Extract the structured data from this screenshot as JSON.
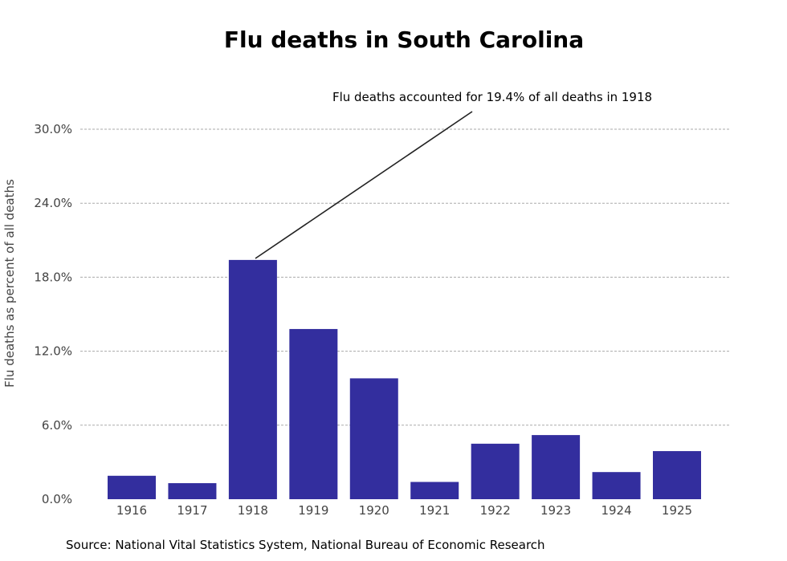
{
  "chart_data": {
    "type": "bar",
    "title": "Flu deaths in South Carolina",
    "xlabel": "",
    "ylabel": "Flu deaths as percent of all deaths",
    "categories": [
      "1916",
      "1917",
      "1918",
      "1919",
      "1920",
      "1921",
      "1922",
      "1923",
      "1924",
      "1925"
    ],
    "values": [
      1.9,
      1.3,
      19.4,
      13.8,
      9.8,
      1.4,
      4.5,
      5.2,
      2.2,
      3.9
    ],
    "ylim": [
      0,
      30
    ],
    "yticks": [
      0,
      6,
      12,
      18,
      24,
      30
    ],
    "ytick_labels": [
      "0.0%",
      "6.0%",
      "12.0%",
      "18.0%",
      "24.0%",
      "30.0%"
    ],
    "grid": true,
    "bar_color": "#332e9e",
    "annotation": {
      "text": "Flu deaths accounted for 19.4% of all deaths in 1918",
      "target_category": "1918",
      "target_value": 19.4
    },
    "source": "Source: National Vital Statistics System, National Bureau of Economic Research"
  }
}
